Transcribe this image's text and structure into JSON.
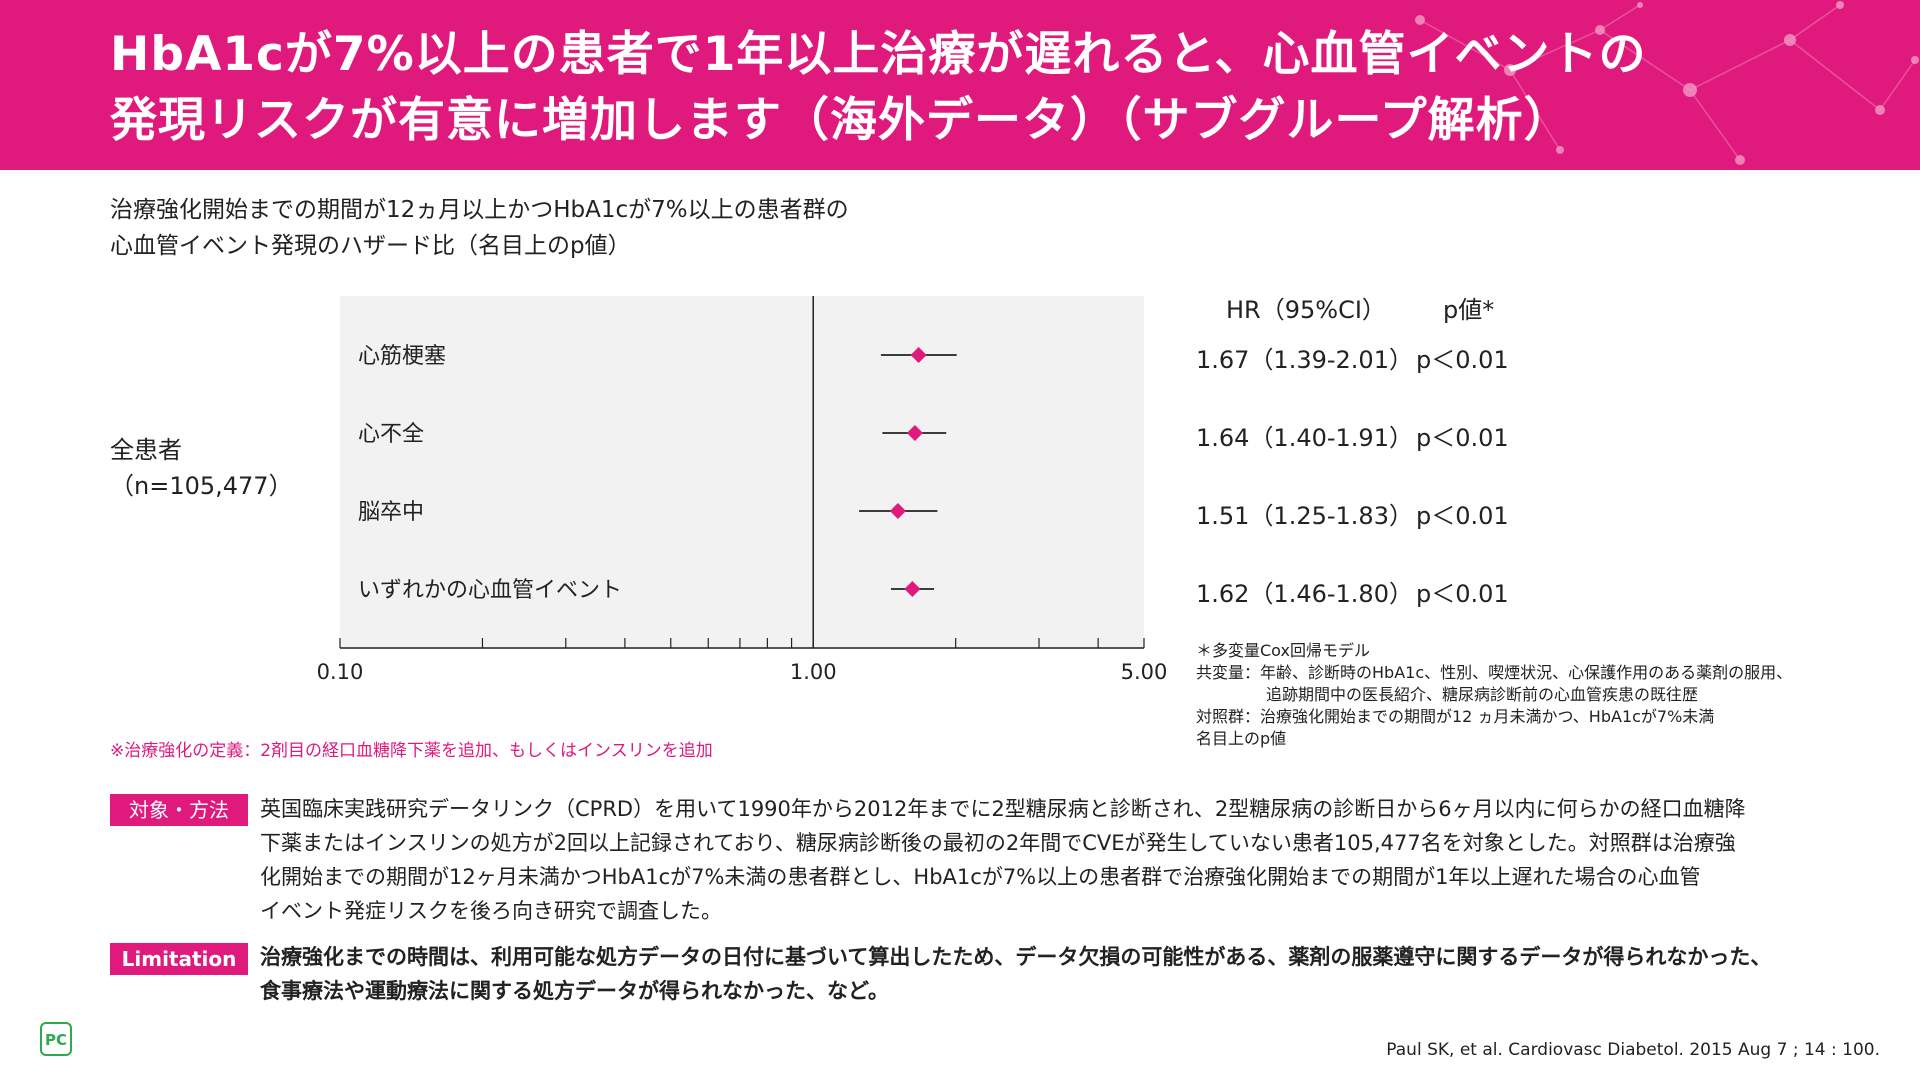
{
  "header": {
    "title_line1": "HbA1cが7%以上の患者で1年以上治療が遅れると、心血管イベントの",
    "title_line2": "発現リスクが有意に増加します（海外データ）（サブグループ解析）",
    "background_color": "#e0197d"
  },
  "subtitle": {
    "line1": "治療強化開始までの期間が12ヵ月以上かつHbA1cが7%以上の患者群の",
    "line2": "心血管イベント発現のハザード比（名目上のp値）"
  },
  "group": {
    "label": "全患者",
    "n": "（n=105,477）"
  },
  "columns": {
    "hr_header": "HR（95%CI）",
    "p_header": "p値*"
  },
  "chart_data": {
    "type": "forest",
    "x_scale": "log",
    "xlim": [
      0.1,
      5.0
    ],
    "reference_line": 1.0,
    "x_tick_labels": [
      "0.10",
      "1.00",
      "5.00"
    ],
    "x_ticks": [
      0.1,
      0.2,
      0.3,
      0.4,
      0.5,
      0.6,
      0.7,
      0.8,
      0.9,
      1.0,
      2.0,
      3.0,
      4.0,
      5.0
    ],
    "marker_color": "#e0197d",
    "rows": [
      {
        "label": "心筋梗塞",
        "hr": 1.67,
        "ci_low": 1.39,
        "ci_high": 2.01,
        "hr_text": "1.67（1.39-2.01）",
        "p_text": "p＜0.01"
      },
      {
        "label": "心不全",
        "hr": 1.64,
        "ci_low": 1.4,
        "ci_high": 1.91,
        "hr_text": "1.64（1.40-1.91）",
        "p_text": "p＜0.01"
      },
      {
        "label": "脳卒中",
        "hr": 1.51,
        "ci_low": 1.25,
        "ci_high": 1.83,
        "hr_text": "1.51（1.25-1.83）",
        "p_text": "p＜0.01"
      },
      {
        "label": "いずれかの心血管イベント",
        "hr": 1.62,
        "ci_low": 1.46,
        "ci_high": 1.8,
        "hr_text": "1.62（1.46-1.80）",
        "p_text": "p＜0.01"
      }
    ]
  },
  "definition_note": "※治療強化の定義：2剤目の経口血糖降下薬を追加、もしくはインスリンを追加",
  "notes": {
    "line1": "＊多変量Cox回帰モデル",
    "line2": "共変量：年齢、診断時のHbA1c、性別、喫煙状況、心保護作用のある薬剤の服用、",
    "line3": "追跡期間中の医長紹介、糖尿病診断前の心血管疾患の既往歴",
    "line4": "対照群：治療強化開始までの期間が12 ヵ月未満かつ、HbA1cが7%未満",
    "line5": "名目上のp値"
  },
  "methods": {
    "label": "対象・方法",
    "line1": "英国臨床実践研究データリンク（CPRD）を用いて1990年から2012年までに2型糖尿病と診断され、2型糖尿病の診断日から6ヶ月以内に何らかの経口血糖降",
    "line2": "下薬またはインスリンの処方が2回以上記録されており、糖尿病診断後の最初の2年間でCVEが発生していない患者105,477名を対象とした。対照群は治療強",
    "line3": "化開始までの期間が12ヶ月未満かつHbA1cが7%未満の患者群とし、HbA1cが7%以上の患者群で治療強化開始までの期間が1年以上遅れた場合の心血管",
    "line4": "イベント発症リスクを後ろ向き研究で調査した。"
  },
  "limitation": {
    "label": "Limitation",
    "line1": "治療強化までの時間は、利用可能な処方データの日付に基づいて算出したため、データ欠損の可能性がある、薬剤の服薬遵守に関するデータが得られなかった、",
    "line2": "食事療法や運動療法に関する処方データが得られなかった、など。"
  },
  "citation": "Paul SK, et al. Cardiovasc Diabetol. 2015 Aug 7 ; 14 : 100.",
  "logo_icon": "pc-logo-icon"
}
